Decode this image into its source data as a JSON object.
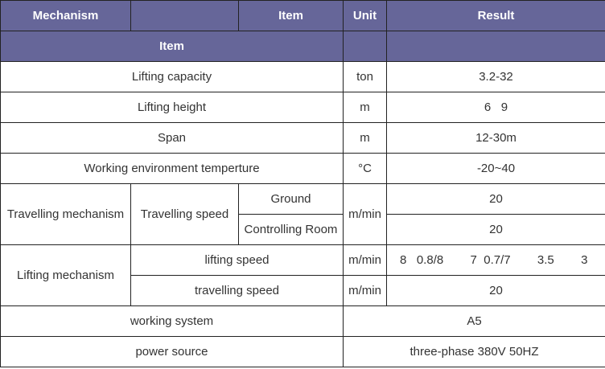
{
  "header": {
    "row1": {
      "mechanism": "Mechanism",
      "blank": "",
      "item": "Item",
      "unit": "Unit",
      "result": "Result"
    },
    "row2": {
      "item": "Item",
      "unit": "",
      "result": ""
    }
  },
  "header_color": "#666699",
  "rows": {
    "lifting_capacity": {
      "item": "Lifting capacity",
      "unit": "ton",
      "result": "3.2-32"
    },
    "lifting_height": {
      "item": "Lifting height",
      "unit": "m",
      "result": "6   9"
    },
    "span": {
      "item": "Span",
      "unit": "m",
      "result": "12-30m"
    },
    "working_env": {
      "item": "Working environment temperture",
      "unit": "°C",
      "result": "-20~40"
    },
    "travelling": {
      "mechanism": "Travelling mechanism",
      "item": "Travelling speed",
      "unit": "m/min",
      "sub": [
        {
          "label": "Ground",
          "result": "20"
        },
        {
          "label": "Controlling Room",
          "result": "20"
        }
      ]
    },
    "lifting": {
      "mechanism": "Lifting mechanism",
      "lifting_speed": {
        "item": "lifting speed",
        "unit": "m/min",
        "result": "8   0.8/8        7  0.7/7        3.5        3"
      },
      "travelling_speed": {
        "item": "travelling speed",
        "unit": "m/min",
        "result": "20"
      }
    },
    "working_system": {
      "item": "working system",
      "result": "A5"
    },
    "power_source": {
      "item": "power source",
      "result": "three-phase 380V 50HZ"
    }
  }
}
